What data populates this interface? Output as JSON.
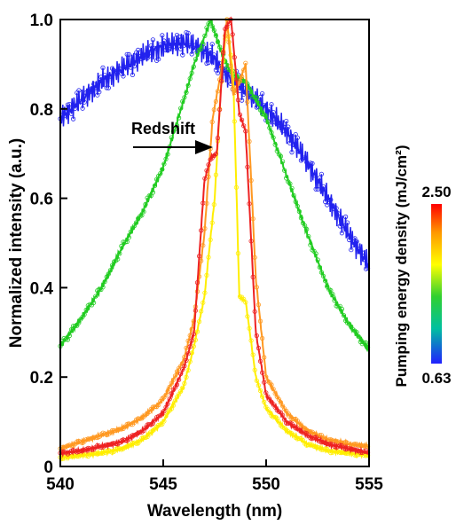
{
  "chart_data": {
    "type": "line",
    "xlabel": "Wavelength (nm)",
    "ylabel": "Normalized intensity (a.u.)",
    "xlim": [
      540,
      555
    ],
    "ylim": [
      0,
      1.0
    ],
    "x_ticks": [
      "540",
      "545",
      "550",
      "555"
    ],
    "y_ticks": [
      "0",
      "0.2",
      "0.4",
      "0.6",
      "0.8",
      "1.0"
    ],
    "annotation": "Redshift",
    "colorbar": {
      "label": "Pumping energy density (mJ/cm²)",
      "max_label": "2.50",
      "min_label": "0.63",
      "min_value": 0.63,
      "max_value": 2.5,
      "colors": [
        "#2020ff",
        "#00c0a0",
        "#30d030",
        "#ffff00",
        "#ff9900",
        "#ff0000"
      ]
    },
    "series": [
      {
        "color": "#2222ee",
        "x": [
          540,
          541,
          542,
          543,
          544,
          545,
          546,
          547,
          547.5,
          548,
          548.5,
          549,
          550,
          551,
          552,
          553,
          554,
          555
        ],
        "y": [
          0.78,
          0.82,
          0.86,
          0.89,
          0.92,
          0.94,
          0.95,
          0.93,
          0.91,
          0.88,
          0.86,
          0.84,
          0.8,
          0.75,
          0.68,
          0.6,
          0.52,
          0.45
        ]
      },
      {
        "color": "#22cc22",
        "x": [
          540,
          541,
          542,
          543,
          544,
          545,
          546,
          546.5,
          547,
          547.3,
          547.8,
          548.3,
          549,
          550,
          551,
          552,
          553,
          554,
          555
        ],
        "y": [
          0.27,
          0.33,
          0.4,
          0.49,
          0.57,
          0.67,
          0.82,
          0.9,
          0.96,
          1.0,
          0.93,
          0.88,
          0.86,
          0.78,
          0.65,
          0.52,
          0.4,
          0.32,
          0.26
        ]
      },
      {
        "color": "#ffee00",
        "x": [
          540,
          541,
          542,
          543,
          544,
          545,
          546,
          546.5,
          547,
          547.5,
          547.8,
          548.1,
          548.4,
          548.7,
          549,
          549.5,
          550,
          551,
          552,
          553,
          554,
          555
        ],
        "y": [
          0.02,
          0.025,
          0.03,
          0.04,
          0.06,
          0.1,
          0.18,
          0.27,
          0.38,
          0.6,
          0.85,
          1.0,
          0.87,
          0.38,
          0.37,
          0.2,
          0.13,
          0.08,
          0.05,
          0.035,
          0.03,
          0.025
        ]
      },
      {
        "color": "#ff9922",
        "x": [
          540,
          541,
          542,
          543,
          544,
          545,
          546,
          546.5,
          547,
          547.4,
          547.8,
          548.1,
          548.4,
          548.7,
          549,
          549.5,
          550,
          551,
          552,
          553,
          554,
          555
        ],
        "y": [
          0.04,
          0.055,
          0.07,
          0.085,
          0.11,
          0.15,
          0.24,
          0.33,
          0.52,
          0.78,
          0.88,
          1.0,
          0.83,
          0.86,
          0.9,
          0.42,
          0.2,
          0.12,
          0.08,
          0.06,
          0.05,
          0.045
        ]
      },
      {
        "color": "#ee2222",
        "x": [
          540,
          541,
          542,
          543,
          544,
          545,
          546,
          546.5,
          547,
          547.3,
          547.6,
          548,
          548.3,
          548.7,
          549,
          549.5,
          550,
          551,
          552,
          553,
          554,
          555
        ],
        "y": [
          0.03,
          0.035,
          0.045,
          0.055,
          0.08,
          0.12,
          0.22,
          0.3,
          0.64,
          0.69,
          0.7,
          0.98,
          1.0,
          0.79,
          0.75,
          0.3,
          0.16,
          0.1,
          0.07,
          0.05,
          0.04,
          0.03
        ]
      }
    ]
  }
}
